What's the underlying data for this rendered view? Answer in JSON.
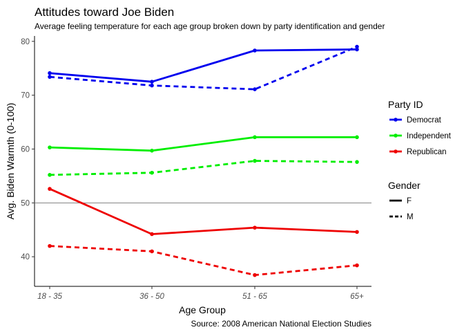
{
  "chart_data": {
    "type": "line",
    "title": "Attitudes toward Joe Biden",
    "subtitle": "Average feeling temperature for each age group broken down by party identification and gender",
    "xlabel": "Age Group",
    "ylabel": "Avg. Biden Warmth (0-100)",
    "caption": "Source: 2008 American National Election Studies",
    "categories": [
      "18 - 35",
      "36 - 50",
      "51 - 65",
      "65+"
    ],
    "ylim": [
      34.5,
      81
    ],
    "yticks": [
      40,
      50,
      60,
      70,
      80
    ],
    "reference_line": 50,
    "grid": false,
    "series": [
      {
        "party": "Democrat",
        "gender": "F",
        "color": "#0000ee",
        "dash": "solid",
        "values": [
          74.1,
          72.5,
          78.3,
          78.5
        ]
      },
      {
        "party": "Democrat",
        "gender": "M",
        "color": "#0000ee",
        "dash": "dashed",
        "values": [
          73.4,
          71.8,
          71.1,
          79.0
        ]
      },
      {
        "party": "Independent",
        "gender": "F",
        "color": "#00ee00",
        "dash": "solid",
        "values": [
          60.3,
          59.7,
          62.2,
          62.2
        ]
      },
      {
        "party": "Independent",
        "gender": "M",
        "color": "#00ee00",
        "dash": "dashed",
        "values": [
          55.2,
          55.6,
          57.8,
          57.6
        ]
      },
      {
        "party": "Republican",
        "gender": "F",
        "color": "#ee0000",
        "dash": "solid",
        "values": [
          52.6,
          44.2,
          45.4,
          44.6
        ]
      },
      {
        "party": "Republican",
        "gender": "M",
        "color": "#ee0000",
        "dash": "dashed",
        "values": [
          42.0,
          41.0,
          36.6,
          38.4
        ]
      }
    ],
    "legend": {
      "placement": "right",
      "party_title": "Party ID",
      "party_items": [
        {
          "label": "Democrat",
          "color": "#0000ee"
        },
        {
          "label": "Independent",
          "color": "#00ee00"
        },
        {
          "label": "Republican",
          "color": "#ee0000"
        }
      ],
      "gender_title": "Gender",
      "gender_items": [
        {
          "label": "F",
          "dash": "solid"
        },
        {
          "label": "M",
          "dash": "dashed"
        }
      ]
    }
  }
}
